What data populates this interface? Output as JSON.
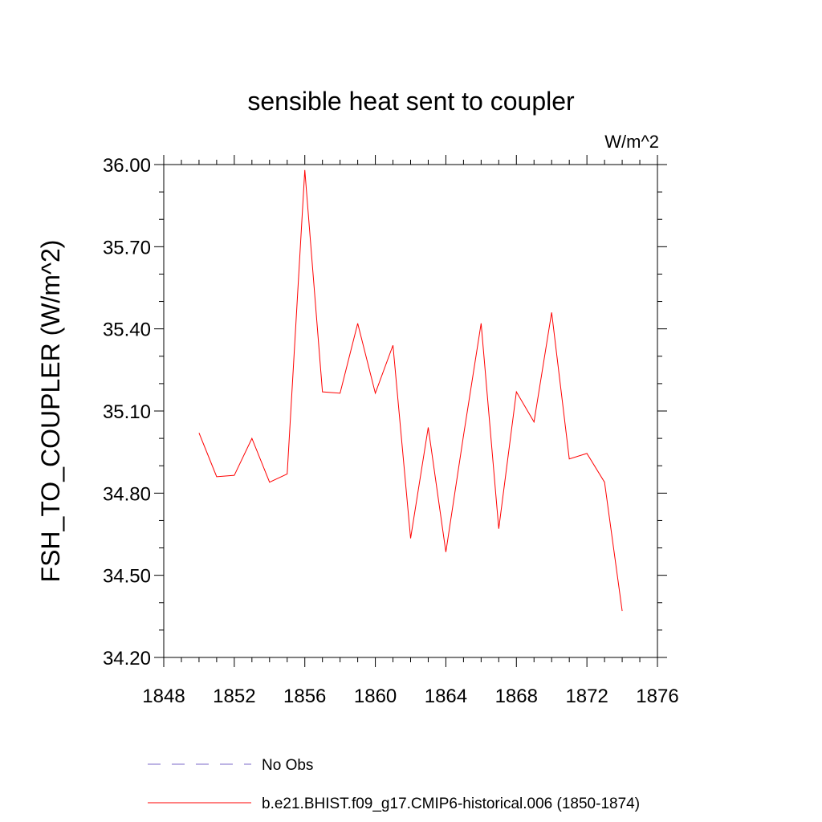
{
  "chart_data": {
    "type": "line",
    "title": "sensible heat sent to coupler",
    "units_label": "W/m^2",
    "ylabel": "FSH_TO_COUPLER  (W/m^2)",
    "xlabel": "",
    "xlim": [
      1848,
      1876
    ],
    "ylim": [
      34.2,
      36.0
    ],
    "x_ticks": [
      1848,
      1852,
      1856,
      1860,
      1864,
      1868,
      1872,
      1876
    ],
    "x_tick_labels": [
      "1848",
      "1852",
      "1856",
      "1860",
      "1864",
      "1868",
      "1872",
      "1876"
    ],
    "y_ticks": [
      34.2,
      34.5,
      34.8,
      35.1,
      35.4,
      35.7,
      36.0
    ],
    "y_tick_labels": [
      "34.20",
      "34.50",
      "34.80",
      "35.10",
      "35.40",
      "35.70",
      "36.00"
    ],
    "grid": false,
    "legend_position": "bottom",
    "series": [
      {
        "name": "No Obs",
        "color": "#7b68c8",
        "dash": "dashed",
        "x": [],
        "values": []
      },
      {
        "name": "b.e21.BHIST.f09_g17.CMIP6-historical.006 (1850-1874)",
        "color": "#ff0000",
        "dash": "solid",
        "x": [
          1850,
          1851,
          1852,
          1853,
          1854,
          1855,
          1856,
          1857,
          1858,
          1859,
          1860,
          1861,
          1862,
          1863,
          1864,
          1865,
          1866,
          1867,
          1868,
          1869,
          1870,
          1871,
          1872,
          1873,
          1874
        ],
        "values": [
          35.02,
          34.86,
          34.865,
          35.0,
          34.84,
          34.87,
          35.98,
          35.17,
          35.165,
          35.42,
          35.165,
          35.34,
          34.635,
          35.04,
          34.585,
          35.01,
          35.42,
          34.67,
          35.17,
          35.06,
          35.46,
          34.925,
          34.945,
          34.84,
          34.37
        ]
      }
    ]
  }
}
